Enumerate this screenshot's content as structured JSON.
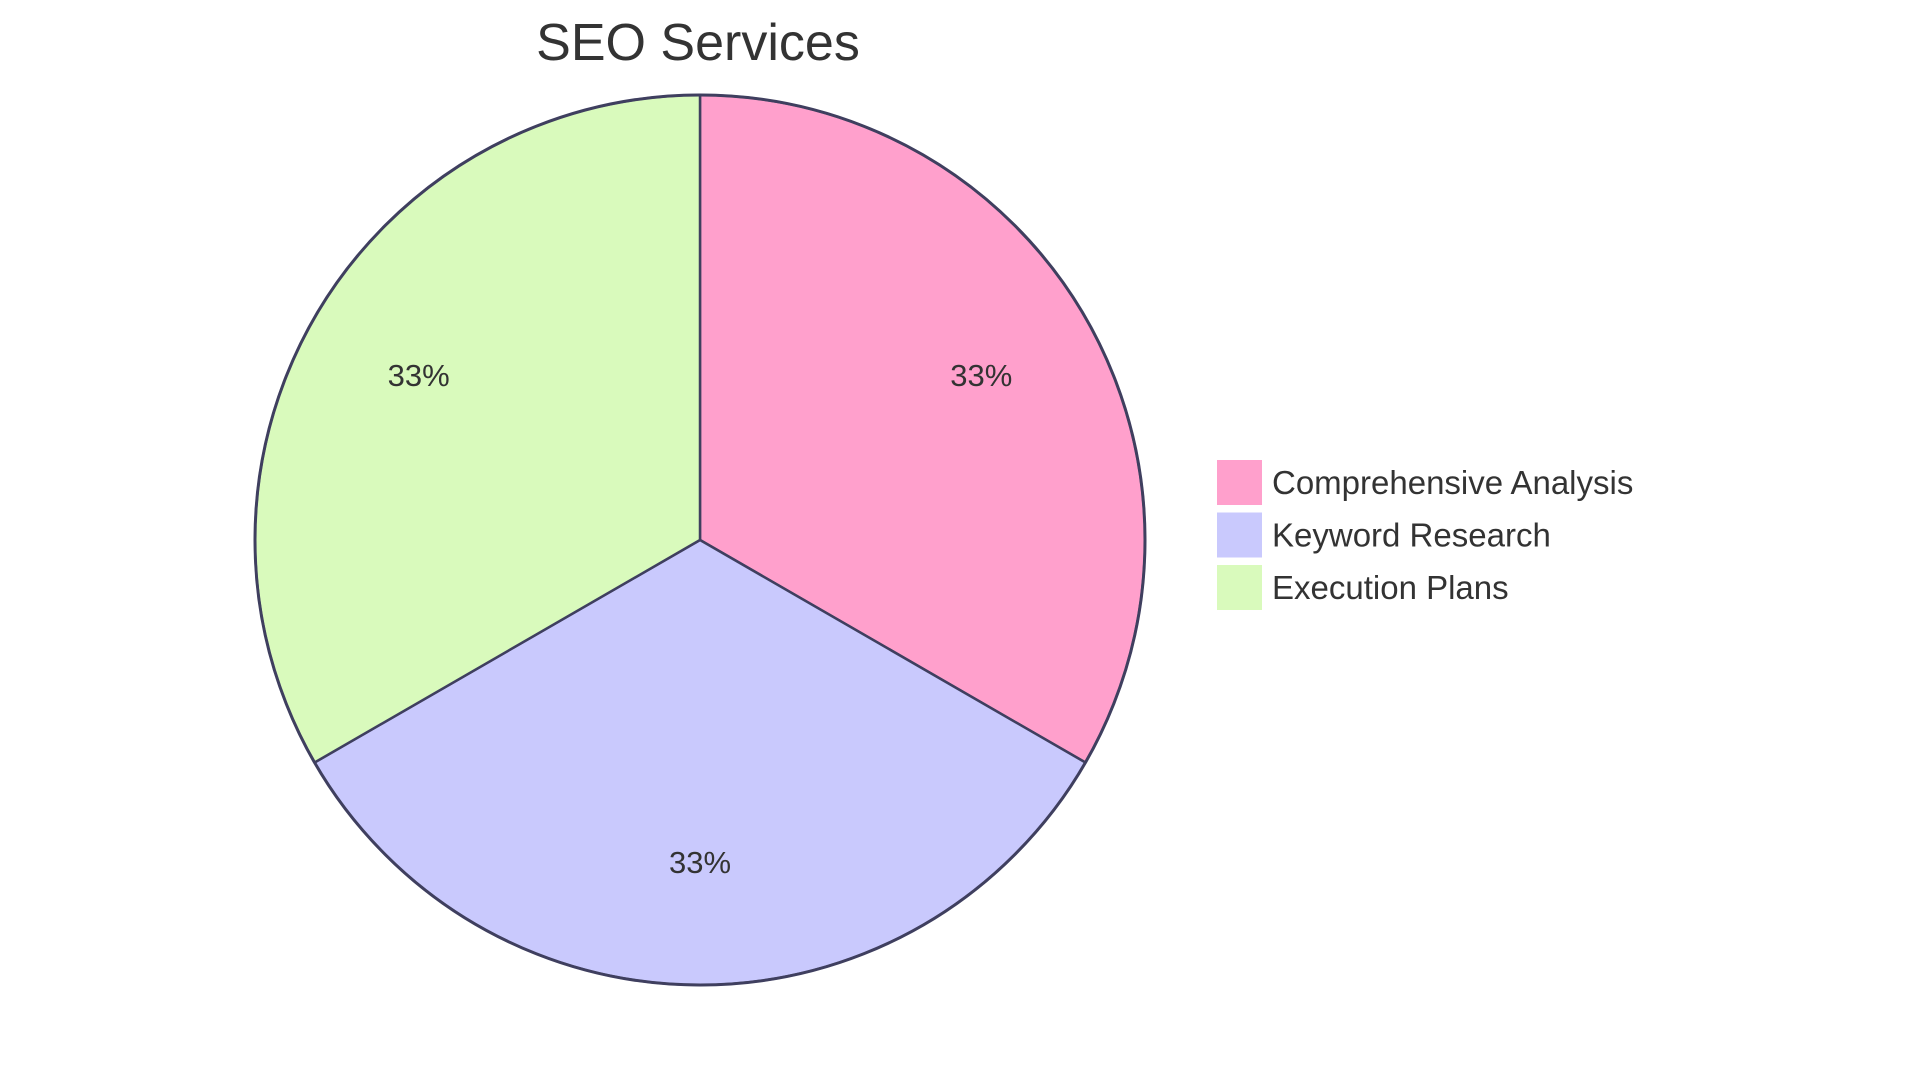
{
  "chart_data": {
    "type": "pie",
    "title": "SEO Services",
    "categories": [
      "Comprehensive Analysis",
      "Keyword Research",
      "Execution Plans"
    ],
    "values": [
      33.33,
      33.33,
      33.33
    ],
    "labels": [
      "33%",
      "33%",
      "33%"
    ],
    "colors": [
      "#FFA0CC",
      "#C9C9FD",
      "#D9FABC"
    ],
    "stroke_color": "#3F3F5F",
    "legend_position": "right",
    "start_angle_deg": 0,
    "direction": "clockwise"
  },
  "legend": {
    "items": [
      {
        "label": "Comprehensive Analysis",
        "color": "#FFA0CC"
      },
      {
        "label": "Keyword Research",
        "color": "#C9C9FD"
      },
      {
        "label": "Execution Plans",
        "color": "#D9FABC"
      }
    ]
  }
}
